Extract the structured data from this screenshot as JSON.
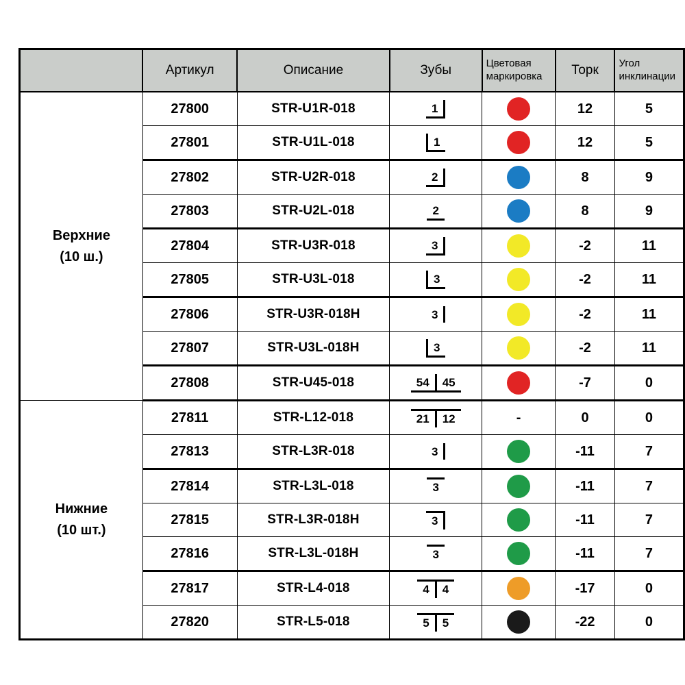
{
  "header": {
    "col_article": "Артикул",
    "col_description": "Описание",
    "col_teeth": "Зубы",
    "col_color": "Цветовая маркировка",
    "col_torque": "Торк",
    "col_angle": "Угол инклинации"
  },
  "colors": {
    "red": "#e12424",
    "blue": "#1b7cc4",
    "yellow": "#f2e927",
    "green": "#1f9b48",
    "orange": "#ee9c28",
    "black": "#1a1a1a"
  },
  "groups": [
    {
      "label_line1": "Верхние",
      "label_line2": "(10 ш.)",
      "rows": [
        {
          "article": "27800",
          "description": "STR-U1R-018",
          "teeth": {
            "numbers": [
              "1"
            ],
            "line": "under",
            "bar": "right"
          },
          "color_name": "red",
          "torque": "12",
          "angle": "5",
          "thick_bottom": false
        },
        {
          "article": "27801",
          "description": "STR-U1L-018",
          "teeth": {
            "numbers": [
              "1"
            ],
            "line": "under",
            "bar": "left"
          },
          "color_name": "red",
          "torque": "12",
          "angle": "5",
          "thick_bottom": true
        },
        {
          "article": "27802",
          "description": "STR-U2R-018",
          "teeth": {
            "numbers": [
              "2"
            ],
            "line": "under",
            "bar": "right"
          },
          "color_name": "blue",
          "torque": "8",
          "angle": "9",
          "thick_bottom": false
        },
        {
          "article": "27803",
          "description": "STR-U2L-018",
          "teeth": {
            "numbers": [
              "2"
            ],
            "line": "under",
            "bar": "none"
          },
          "color_name": "blue",
          "torque": "8",
          "angle": "9",
          "thick_bottom": true
        },
        {
          "article": "27804",
          "description": "STR-U3R-018",
          "teeth": {
            "numbers": [
              "3"
            ],
            "line": "under",
            "bar": "right"
          },
          "color_name": "yellow",
          "torque": "-2",
          "angle": "11",
          "thick_bottom": false
        },
        {
          "article": "27805",
          "description": "STR-U3L-018",
          "teeth": {
            "numbers": [
              "3"
            ],
            "line": "under",
            "bar": "left"
          },
          "color_name": "yellow",
          "torque": "-2",
          "angle": "11",
          "thick_bottom": true
        },
        {
          "article": "27806",
          "description": "STR-U3R-018H",
          "teeth": {
            "numbers": [
              "3"
            ],
            "line": "none",
            "bar": "right"
          },
          "color_name": "yellow",
          "torque": "-2",
          "angle": "11",
          "thick_bottom": false
        },
        {
          "article": "27807",
          "description": "STR-U3L-018H",
          "teeth": {
            "numbers": [
              "3"
            ],
            "line": "under",
            "bar": "left"
          },
          "color_name": "yellow",
          "torque": "-2",
          "angle": "11",
          "thick_bottom": true
        },
        {
          "article": "27808",
          "description": "STR-U45-018",
          "teeth": {
            "numbers": [
              "54",
              "45"
            ],
            "line": "under",
            "bar": "middle"
          },
          "color_name": "red",
          "torque": "-7",
          "angle": "0",
          "thick_bottom": true
        }
      ]
    },
    {
      "label_line1": "Нижние",
      "label_line2": "(10 шт.)",
      "rows": [
        {
          "article": "27811",
          "description": "STR-L12-018",
          "teeth": {
            "numbers": [
              "21",
              "12"
            ],
            "line": "over",
            "bar": "middle"
          },
          "color_name": null,
          "color_text": "-",
          "torque": "0",
          "angle": "0",
          "thick_bottom": false
        },
        {
          "article": "27813",
          "description": "STR-L3R-018",
          "teeth": {
            "numbers": [
              "3"
            ],
            "line": "none",
            "bar": "right"
          },
          "color_name": "green",
          "torque": "-11",
          "angle": "7",
          "thick_bottom": true
        },
        {
          "article": "27814",
          "description": "STR-L3L-018",
          "teeth": {
            "numbers": [
              "3"
            ],
            "line": "over",
            "bar": "none"
          },
          "color_name": "green",
          "torque": "-11",
          "angle": "7",
          "thick_bottom": false
        },
        {
          "article": "27815",
          "description": "STR-L3R-018H",
          "teeth": {
            "numbers": [
              "3"
            ],
            "line": "over",
            "bar": "right"
          },
          "color_name": "green",
          "torque": "-11",
          "angle": "7",
          "thick_bottom": false
        },
        {
          "article": "27816",
          "description": "STR-L3L-018H",
          "teeth": {
            "numbers": [
              "3"
            ],
            "line": "over",
            "bar": "none"
          },
          "color_name": "green",
          "torque": "-11",
          "angle": "7",
          "thick_bottom": true
        },
        {
          "article": "27817",
          "description": "STR-L4-018",
          "teeth": {
            "numbers": [
              "4",
              "4"
            ],
            "line": "over",
            "bar": "middle"
          },
          "color_name": "orange",
          "torque": "-17",
          "angle": "0",
          "thick_bottom": false
        },
        {
          "article": "27820",
          "description": "STR-L5-018",
          "teeth": {
            "numbers": [
              "5",
              "5"
            ],
            "line": "over",
            "bar": "middle"
          },
          "color_name": "black",
          "torque": "-22",
          "angle": "0",
          "thick_bottom": false
        }
      ]
    }
  ]
}
